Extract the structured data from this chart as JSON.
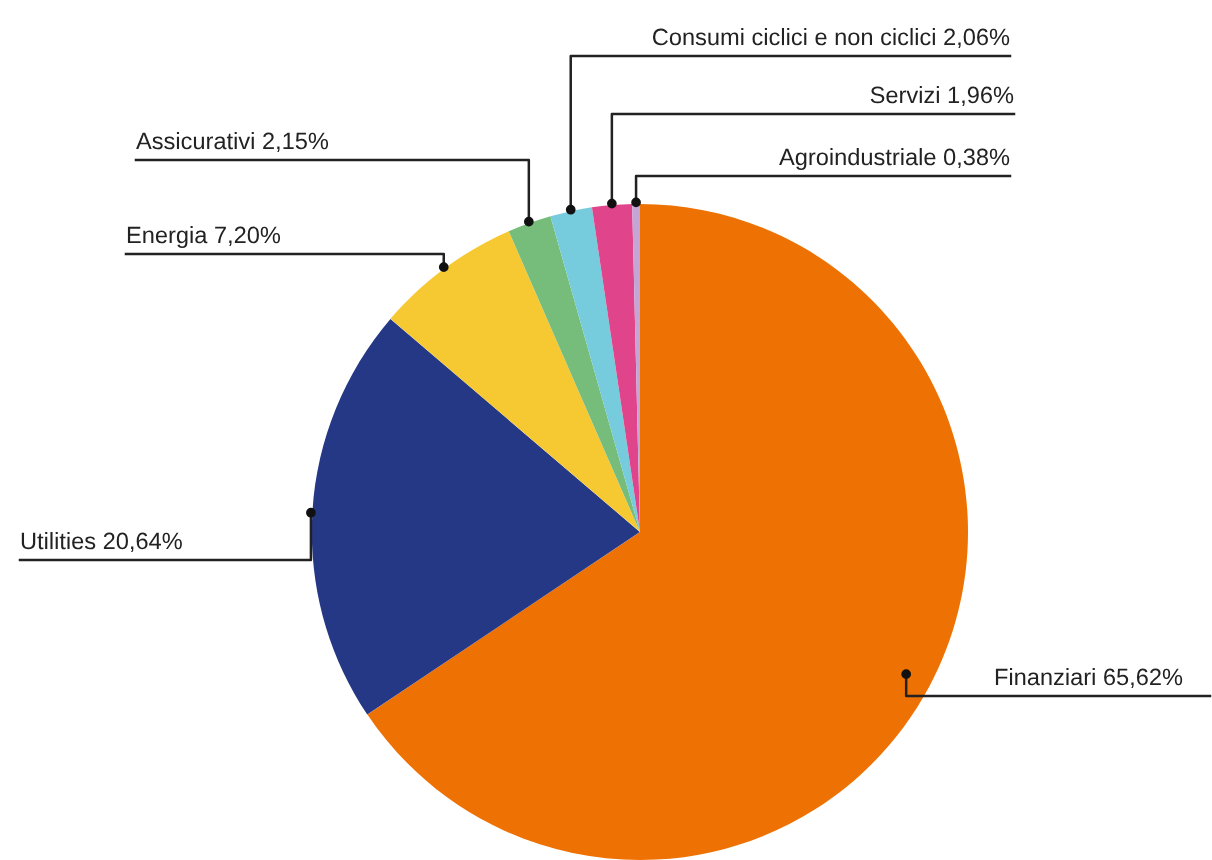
{
  "chart_data": {
    "type": "pie",
    "categories": [
      "Finanziari",
      "Utilities",
      "Energia",
      "Assicurativi",
      "Consumi ciclici e non ciclici",
      "Servizi",
      "Agroindustriale"
    ],
    "values": [
      65.62,
      20.64,
      7.2,
      2.15,
      2.06,
      1.96,
      0.38
    ],
    "value_labels": [
      "65,62%",
      "20,64%",
      "7,20%",
      "2,15%",
      "2,06%",
      "1,96%",
      "0,38%"
    ],
    "colors": [
      "#ee7203",
      "#253886",
      "#f6c932",
      "#76bd7b",
      "#76cbdc",
      "#e0458b",
      "#c3a6d6"
    ],
    "legend": false
  }
}
